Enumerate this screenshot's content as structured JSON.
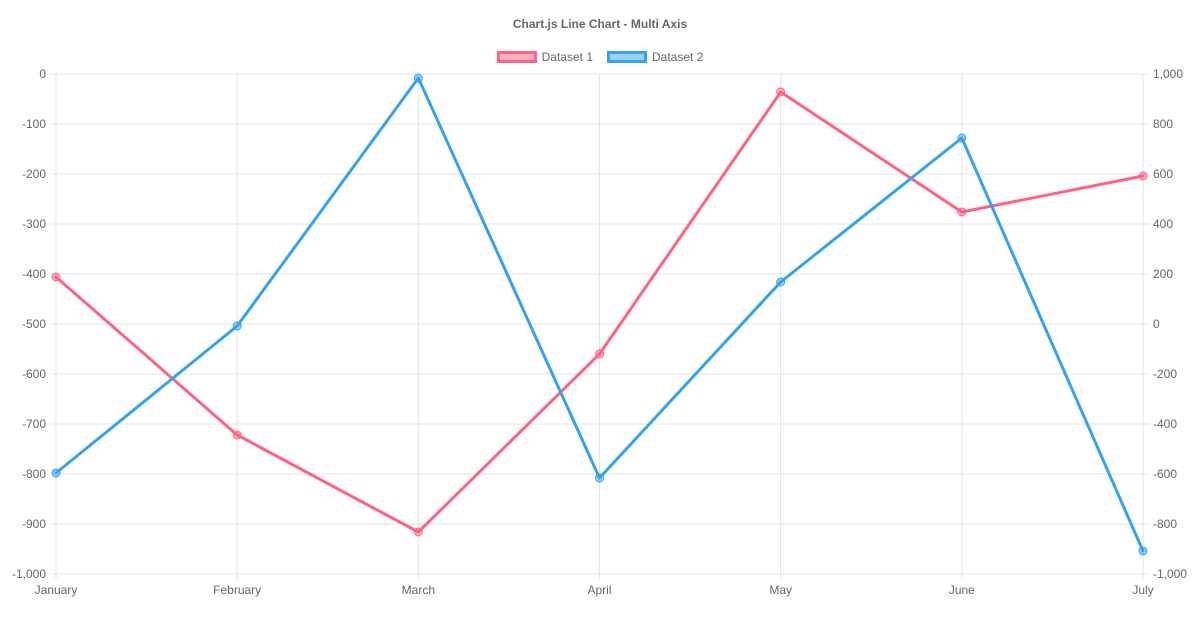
{
  "title": "Chart.js Line Chart - Multi Axis",
  "chart_data": {
    "type": "line",
    "title": "Chart.js Line Chart - Multi Axis",
    "legend_position": "top",
    "grid": true,
    "categories": [
      "January",
      "February",
      "March",
      "April",
      "May",
      "June",
      "July"
    ],
    "series": [
      {
        "name": "Dataset 1",
        "axis": "left",
        "color": "#FF6384",
        "fill_color": "rgba(255,99,132,0.5)",
        "values": [
          -406,
          -722,
          -916,
          -560,
          -36,
          -276,
          -204
        ]
      },
      {
        "name": "Dataset 2",
        "axis": "right",
        "color": "#36A2EB",
        "fill_color": "rgba(54,162,235,0.5)",
        "values": [
          -596,
          -8,
          984,
          -616,
          168,
          744,
          -908
        ]
      }
    ],
    "axes": {
      "left": {
        "position": "left",
        "max": 0,
        "min": -1000,
        "tick_labels": [
          "0",
          "-100",
          "-200",
          "-300",
          "-400",
          "-500",
          "-600",
          "-700",
          "-800",
          "-900",
          "-1,000"
        ]
      },
      "right": {
        "position": "right",
        "max": 1000,
        "min": -1000,
        "tick_labels": [
          "1,000",
          "800",
          "600",
          "400",
          "200",
          "0",
          "-200",
          "-400",
          "-600",
          "-800",
          "-1,000"
        ]
      }
    },
    "colors": {
      "grid": "rgba(0,0,0,0.1)",
      "text": "#666666",
      "background": "#ffffff"
    }
  }
}
